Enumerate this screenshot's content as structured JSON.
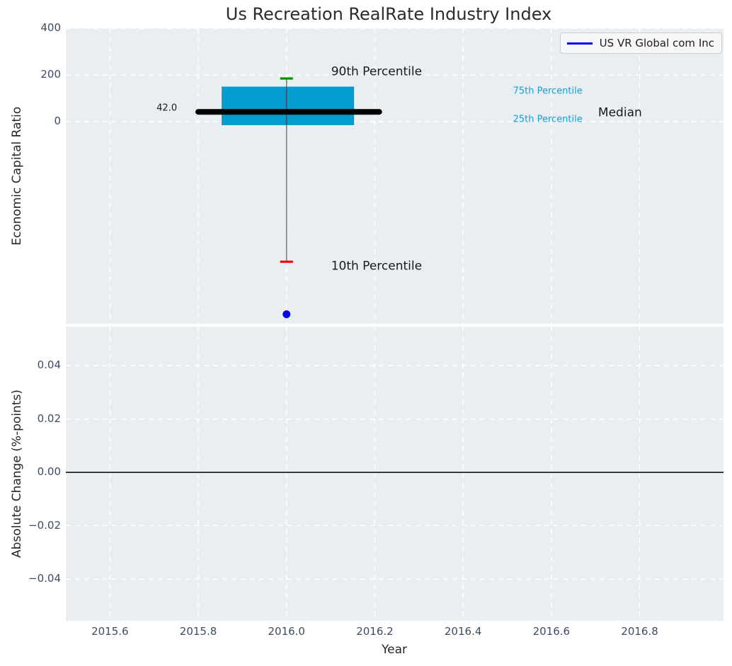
{
  "chart_data": {
    "type": "boxplot",
    "title": "Us Recreation RealRate Industry Index",
    "legend": {
      "label": "US VR Global com Inc",
      "line_color": "#0000ee"
    },
    "x_axis": {
      "label": "Year",
      "range": [
        2015.5,
        2016.99
      ],
      "tick_values": [
        2015.6,
        2015.8,
        2016.0,
        2016.2,
        2016.4,
        2016.6,
        2016.8
      ],
      "tick_labels": [
        "2015.6",
        "2015.8",
        "2016.0",
        "2016.2",
        "2016.4",
        "2016.6",
        "2016.8"
      ],
      "grid": "dashed-white"
    },
    "top_plot": {
      "ylabel": "Economic Capital Ratio",
      "ylim": [
        -866,
        400
      ],
      "tick_values": [
        400,
        200,
        0
      ],
      "tick_labels": [
        "400",
        "200",
        "0"
      ],
      "industry_box": {
        "center_x": 2016.0,
        "median": 42.0,
        "median_x_span": [
          2015.8,
          2016.21
        ],
        "q1": -15,
        "q3": 150,
        "box_x_span": [
          2015.853,
          2016.153
        ],
        "p10": -600,
        "p90": 185,
        "cap_half_width": 0.0145,
        "box_color": "#029cce",
        "median_color": "#000000",
        "whisker_color": "#3a3a3a",
        "p90_cap_color": "#089108",
        "p10_cap_color": "#f40000"
      },
      "company_point": {
        "x": 2016.0,
        "y": -825,
        "color": "#0404ee"
      },
      "annotations": [
        {
          "text": "42.0",
          "x": 2015.752,
          "y": 58,
          "align": "right",
          "color": "#1a1a1a",
          "size": 13
        },
        {
          "text": "90th Percentile",
          "x": 2016.101,
          "y": 212,
          "align": "left",
          "color": "#1a1a1a",
          "size": 17
        },
        {
          "text": "75th Percentile",
          "x": 2016.513,
          "y": 130,
          "align": "left",
          "color": "#1b9cd3",
          "size": 13
        },
        {
          "text": "25th Percentile",
          "x": 2016.513,
          "y": 9,
          "align": "left",
          "color": "#1b9cd3",
          "size": 13
        },
        {
          "text": "Median",
          "x": 2016.706,
          "y": 38,
          "align": "left",
          "color": "#1a1a1a",
          "size": 17
        },
        {
          "text": "10th Percentile",
          "x": 2016.101,
          "y": -621,
          "align": "left",
          "color": "#1a1a1a",
          "size": 17
        }
      ]
    },
    "bottom_plot": {
      "ylabel": "Absolute Change (%-points)",
      "ylim": [
        -0.0556,
        0.0546
      ],
      "tick_values": [
        0.04,
        0.02,
        0,
        -0.02,
        -0.04
      ],
      "tick_labels": [
        "0.04",
        "0.02",
        "0.00",
        "−0.02",
        "−0.04"
      ],
      "zero_line": {
        "y": 0,
        "color": "#000000"
      }
    },
    "colors": {
      "figure_bg": "#ffffff",
      "axes_bg": "#e9eef0",
      "grid": "#ffffff",
      "tick_label": "#3d4c63",
      "axis_label": "#262626",
      "title": "#2b2b2b"
    }
  }
}
